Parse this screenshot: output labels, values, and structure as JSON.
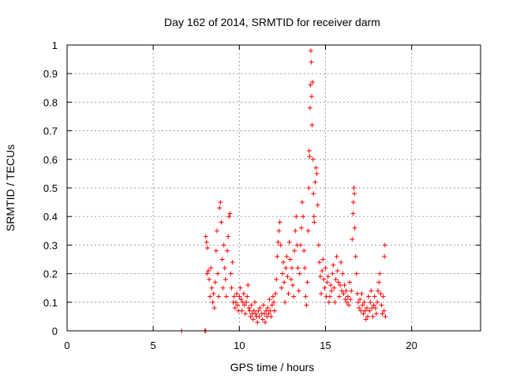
{
  "chart_data": {
    "type": "scatter",
    "title": "Day 162 of 2014, SRMTID for receiver darm",
    "xlabel": "GPS time / hours",
    "ylabel": "SRMTID / TECUs",
    "xlim": [
      0,
      24
    ],
    "ylim": [
      0,
      1
    ],
    "x_ticks": [
      "0",
      "5",
      "10",
      "15",
      "20"
    ],
    "y_ticks": [
      "0",
      "0.1",
      "0.2",
      "0.3",
      "0.4",
      "0.5",
      "0.6",
      "0.7",
      "0.8",
      "0.9",
      "1"
    ],
    "grid": true,
    "marker": "+",
    "color": "#ff0000",
    "points": [
      [
        6.65,
        0.0
      ],
      [
        8.0,
        0.0
      ],
      [
        8.05,
        0.0
      ],
      [
        8.05,
        0.33
      ],
      [
        8.1,
        0.31
      ],
      [
        8.12,
        0.2
      ],
      [
        8.15,
        0.29
      ],
      [
        8.2,
        0.21
      ],
      [
        8.25,
        0.18
      ],
      [
        8.3,
        0.12
      ],
      [
        8.35,
        0.22
      ],
      [
        8.4,
        0.15
      ],
      [
        8.45,
        0.1
      ],
      [
        8.5,
        0.13
      ],
      [
        8.55,
        0.08
      ],
      [
        8.6,
        0.17
      ],
      [
        8.65,
        0.28
      ],
      [
        8.7,
        0.35
      ],
      [
        8.75,
        0.2
      ],
      [
        8.8,
        0.12
      ],
      [
        8.85,
        0.43
      ],
      [
        8.9,
        0.45
      ],
      [
        8.95,
        0.38
      ],
      [
        9.0,
        0.25
      ],
      [
        9.05,
        0.15
      ],
      [
        9.1,
        0.3
      ],
      [
        9.15,
        0.22
      ],
      [
        9.2,
        0.18
      ],
      [
        9.25,
        0.12
      ],
      [
        9.3,
        0.28
      ],
      [
        9.35,
        0.33
      ],
      [
        9.4,
        0.4
      ],
      [
        9.45,
        0.41
      ],
      [
        9.5,
        0.2
      ],
      [
        9.55,
        0.15
      ],
      [
        9.6,
        0.24
      ],
      [
        9.65,
        0.1
      ],
      [
        9.7,
        0.12
      ],
      [
        9.75,
        0.08
      ],
      [
        9.8,
        0.1
      ],
      [
        9.85,
        0.13
      ],
      [
        9.9,
        0.09
      ],
      [
        9.95,
        0.07
      ],
      [
        10.0,
        0.12
      ],
      [
        10.05,
        0.15
      ],
      [
        10.1,
        0.11
      ],
      [
        10.15,
        0.07
      ],
      [
        10.2,
        0.1
      ],
      [
        10.25,
        0.13
      ],
      [
        10.3,
        0.09
      ],
      [
        10.35,
        0.06
      ],
      [
        10.4,
        0.1
      ],
      [
        10.45,
        0.12
      ],
      [
        10.5,
        0.16
      ],
      [
        10.55,
        0.08
      ],
      [
        10.6,
        0.07
      ],
      [
        10.65,
        0.05
      ],
      [
        10.7,
        0.09
      ],
      [
        10.75,
        0.06
      ],
      [
        10.8,
        0.04
      ],
      [
        10.85,
        0.07
      ],
      [
        10.9,
        0.1
      ],
      [
        10.95,
        0.06
      ],
      [
        11.0,
        0.05
      ],
      [
        11.05,
        0.03
      ],
      [
        11.1,
        0.07
      ],
      [
        11.15,
        0.05
      ],
      [
        11.2,
        0.08
      ],
      [
        11.3,
        0.06
      ],
      [
        11.35,
        0.04
      ],
      [
        11.4,
        0.09
      ],
      [
        11.45,
        0.06
      ],
      [
        11.5,
        0.03
      ],
      [
        11.55,
        0.07
      ],
      [
        11.6,
        0.05
      ],
      [
        11.65,
        0.08
      ],
      [
        11.7,
        0.06
      ],
      [
        11.75,
        0.11
      ],
      [
        11.8,
        0.07
      ],
      [
        11.85,
        0.05
      ],
      [
        11.9,
        0.09
      ],
      [
        11.95,
        0.12
      ],
      [
        12.0,
        0.1
      ],
      [
        12.05,
        0.07
      ],
      [
        12.1,
        0.13
      ],
      [
        12.15,
        0.18
      ],
      [
        12.2,
        0.26
      ],
      [
        12.25,
        0.31
      ],
      [
        12.3,
        0.35
      ],
      [
        12.35,
        0.38
      ],
      [
        12.4,
        0.3
      ],
      [
        12.45,
        0.15
      ],
      [
        12.5,
        0.2
      ],
      [
        12.55,
        0.24
      ],
      [
        12.6,
        0.17
      ],
      [
        12.65,
        0.1
      ],
      [
        12.7,
        0.22
      ],
      [
        12.75,
        0.26
      ],
      [
        12.8,
        0.19
      ],
      [
        12.85,
        0.13
      ],
      [
        12.9,
        0.31
      ],
      [
        12.95,
        0.25
      ],
      [
        13.0,
        0.18
      ],
      [
        13.05,
        0.22
      ],
      [
        13.1,
        0.16
      ],
      [
        13.15,
        0.12
      ],
      [
        13.2,
        0.28
      ],
      [
        13.25,
        0.35
      ],
      [
        13.3,
        0.4
      ],
      [
        13.35,
        0.3
      ],
      [
        13.4,
        0.22
      ],
      [
        13.45,
        0.14
      ],
      [
        13.5,
        0.2
      ],
      [
        13.55,
        0.3
      ],
      [
        13.6,
        0.36
      ],
      [
        13.65,
        0.45
      ],
      [
        13.7,
        0.4
      ],
      [
        13.75,
        0.28
      ],
      [
        13.8,
        0.22
      ],
      [
        13.85,
        0.12
      ],
      [
        13.9,
        0.09
      ],
      [
        13.95,
        0.17
      ],
      [
        14.0,
        0.35
      ],
      [
        14.03,
        0.5
      ],
      [
        14.05,
        0.63
      ],
      [
        14.08,
        0.61
      ],
      [
        14.1,
        0.78
      ],
      [
        14.12,
        0.86
      ],
      [
        14.15,
        0.98
      ],
      [
        14.18,
        0.94
      ],
      [
        14.2,
        0.82
      ],
      [
        14.22,
        0.72
      ],
      [
        14.25,
        0.87
      ],
      [
        14.28,
        0.6
      ],
      [
        14.3,
        0.48
      ],
      [
        14.33,
        0.4
      ],
      [
        14.35,
        0.38
      ],
      [
        14.4,
        0.52
      ],
      [
        14.45,
        0.57
      ],
      [
        14.5,
        0.55
      ],
      [
        14.55,
        0.44
      ],
      [
        14.6,
        0.3
      ],
      [
        14.65,
        0.24
      ],
      [
        14.7,
        0.19
      ],
      [
        14.75,
        0.13
      ],
      [
        14.8,
        0.21
      ],
      [
        14.85,
        0.25
      ],
      [
        14.9,
        0.18
      ],
      [
        14.95,
        0.15
      ],
      [
        15.0,
        0.22
      ],
      [
        15.05,
        0.12
      ],
      [
        15.1,
        0.17
      ],
      [
        15.15,
        0.19
      ],
      [
        15.2,
        0.1
      ],
      [
        15.25,
        0.12
      ],
      [
        15.3,
        0.16
      ],
      [
        15.35,
        0.14
      ],
      [
        15.4,
        0.2
      ],
      [
        15.45,
        0.23
      ],
      [
        15.5,
        0.15
      ],
      [
        15.55,
        0.1
      ],
      [
        15.6,
        0.18
      ],
      [
        15.65,
        0.26
      ],
      [
        15.7,
        0.21
      ],
      [
        15.75,
        0.17
      ],
      [
        15.8,
        0.12
      ],
      [
        15.85,
        0.16
      ],
      [
        15.9,
        0.24
      ],
      [
        15.95,
        0.14
      ],
      [
        16.0,
        0.2
      ],
      [
        16.05,
        0.13
      ],
      [
        16.1,
        0.16
      ],
      [
        16.15,
        0.11
      ],
      [
        16.2,
        0.14
      ],
      [
        16.25,
        0.1
      ],
      [
        16.3,
        0.12
      ],
      [
        16.35,
        0.09
      ],
      [
        16.4,
        0.17
      ],
      [
        16.45,
        0.11
      ],
      [
        16.5,
        0.14
      ],
      [
        16.55,
        0.32
      ],
      [
        16.6,
        0.41
      ],
      [
        16.62,
        0.45
      ],
      [
        16.65,
        0.5
      ],
      [
        16.68,
        0.48
      ],
      [
        16.7,
        0.36
      ],
      [
        16.75,
        0.26
      ],
      [
        16.8,
        0.2
      ],
      [
        16.85,
        0.13
      ],
      [
        16.9,
        0.1
      ],
      [
        16.95,
        0.08
      ],
      [
        17.0,
        0.11
      ],
      [
        17.05,
        0.07
      ],
      [
        17.1,
        0.13
      ],
      [
        17.15,
        0.09
      ],
      [
        17.2,
        0.06
      ],
      [
        17.25,
        0.1
      ],
      [
        17.3,
        0.07
      ],
      [
        17.35,
        0.04
      ],
      [
        17.4,
        0.08
      ],
      [
        17.45,
        0.05
      ],
      [
        17.5,
        0.12
      ],
      [
        17.55,
        0.07
      ],
      [
        17.6,
        0.1
      ],
      [
        17.65,
        0.14
      ],
      [
        17.7,
        0.08
      ],
      [
        17.75,
        0.05
      ],
      [
        17.8,
        0.09
      ],
      [
        17.85,
        0.12
      ],
      [
        17.9,
        0.08
      ],
      [
        17.95,
        0.06
      ],
      [
        18.0,
        0.1
      ],
      [
        18.05,
        0.14
      ],
      [
        18.1,
        0.17
      ],
      [
        18.15,
        0.2
      ],
      [
        18.2,
        0.13
      ],
      [
        18.25,
        0.09
      ],
      [
        18.3,
        0.06
      ],
      [
        18.35,
        0.12
      ],
      [
        18.4,
        0.07
      ],
      [
        18.42,
        0.26
      ],
      [
        18.45,
        0.3
      ],
      [
        18.48,
        0.05
      ]
    ]
  }
}
